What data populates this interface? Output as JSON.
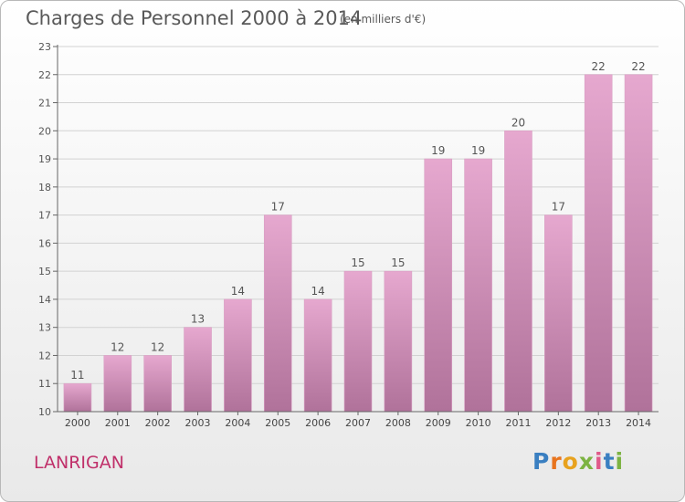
{
  "chart_data": {
    "type": "bar",
    "title": "Charges de Personnel 2000 à 2014",
    "subtitle": "(en milliers d'€)",
    "categories": [
      "2000",
      "2001",
      "2002",
      "2003",
      "2004",
      "2005",
      "2006",
      "2007",
      "2008",
      "2009",
      "2010",
      "2011",
      "2012",
      "2013",
      "2014"
    ],
    "values": [
      11,
      12,
      12,
      13,
      14,
      17,
      14,
      15,
      15,
      19,
      19,
      20,
      17,
      22,
      22
    ],
    "ylim": [
      10,
      23
    ],
    "yticks": [
      10,
      11,
      12,
      13,
      14,
      15,
      16,
      17,
      18,
      19,
      20,
      21,
      22,
      23
    ],
    "grid": true,
    "bar_color_top": "#e6a8cf",
    "bar_color_bottom": "#b0729a"
  },
  "commune": "LANRIGAN",
  "logo": {
    "text": "Proxiti",
    "letter_colors": [
      "#3a7fc1",
      "#e8741e",
      "#e8a21e",
      "#7cb342",
      "#e05a8a",
      "#3a7fc1",
      "#7cb342"
    ]
  }
}
